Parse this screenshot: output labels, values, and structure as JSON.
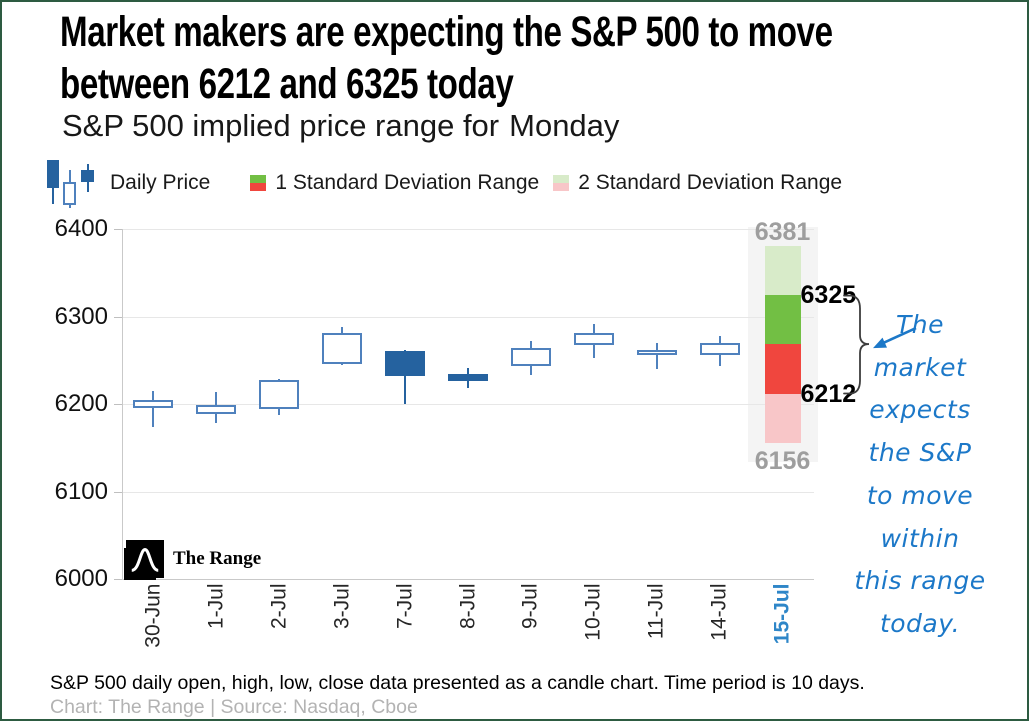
{
  "header": {
    "title_line1": "Market makers are expecting the S&P 500 to move",
    "title_line2": "between 6212 and 6325 today",
    "subtitle_prefix": "S&P 500 implied price range for",
    "subtitle_day": "Monday"
  },
  "legend": {
    "daily_price": "Daily Price",
    "sd1": "1 Standard Deviation Range",
    "sd2": "2 Standard Deviation Range"
  },
  "chart_data": {
    "type": "candlestick",
    "title": "S&P 500 implied price range for Monday",
    "ylim": [
      6000,
      6400
    ],
    "yticks": [
      6000,
      6100,
      6200,
      6300,
      6400
    ],
    "grid": true,
    "legend_position": "top",
    "categories": [
      "30-Jun",
      "1-Jul",
      "2-Jul",
      "3-Jul",
      "7-Jul",
      "8-Jul",
      "9-Jul",
      "10-Jul",
      "11-Jul",
      "14-Jul",
      "15-Jul"
    ],
    "candles": [
      {
        "date": "30-Jun",
        "open": 6195,
        "high": 6215,
        "low": 6174,
        "close": 6205
      },
      {
        "date": "1-Jul",
        "open": 6189,
        "high": 6214,
        "low": 6178,
        "close": 6199
      },
      {
        "date": "2-Jul",
        "open": 6194,
        "high": 6229,
        "low": 6188,
        "close": 6228
      },
      {
        "date": "3-Jul",
        "open": 6246,
        "high": 6288,
        "low": 6245,
        "close": 6281
      },
      {
        "date": "7-Jul",
        "open": 6261,
        "high": 6262,
        "low": 6200,
        "close": 6232
      },
      {
        "date": "8-Jul",
        "open": 6234,
        "high": 6241,
        "low": 6218,
        "close": 6226
      },
      {
        "date": "9-Jul",
        "open": 6244,
        "high": 6272,
        "low": 6233,
        "close": 6264
      },
      {
        "date": "10-Jul",
        "open": 6267,
        "high": 6291,
        "low": 6253,
        "close": 6281
      },
      {
        "date": "11-Jul",
        "open": 6256,
        "high": 6270,
        "low": 6240,
        "close": 6262
      },
      {
        "date": "14-Jul",
        "open": 6256,
        "high": 6278,
        "low": 6244,
        "close": 6270
      }
    ],
    "implied_range": {
      "date": "15-Jul",
      "two_sd_low": 6156,
      "one_sd_low": 6212,
      "one_sd_high": 6325,
      "two_sd_high": 6381
    }
  },
  "annotations": {
    "note_text": "The market expects the S&P to move within this range today.",
    "note_lines": [
      "The",
      "market",
      "expects",
      "the S&P",
      "to move",
      "within",
      "this range",
      "today."
    ]
  },
  "watermark": {
    "logo_text": "The Range"
  },
  "footer": {
    "note": "S&P 500 daily open, high, low, close data presented as a candle chart. Time period is 10 days.",
    "source": "Chart: The Range | Source: Nasdaq, Cboe"
  },
  "colors": {
    "candle_up_border": "#4f81bd",
    "candle_down_fill": "#25629f",
    "sd1_green": "#72bf44",
    "sd1_red": "#f0463e",
    "sd2_green": "#d8ebc9",
    "sd2_pink": "#f8c6c8",
    "highlight_date": "#2e86c8",
    "annotation_blue": "#1c78c8",
    "muted_label": "#9e9e9e",
    "page_border": "#2d5b41"
  }
}
